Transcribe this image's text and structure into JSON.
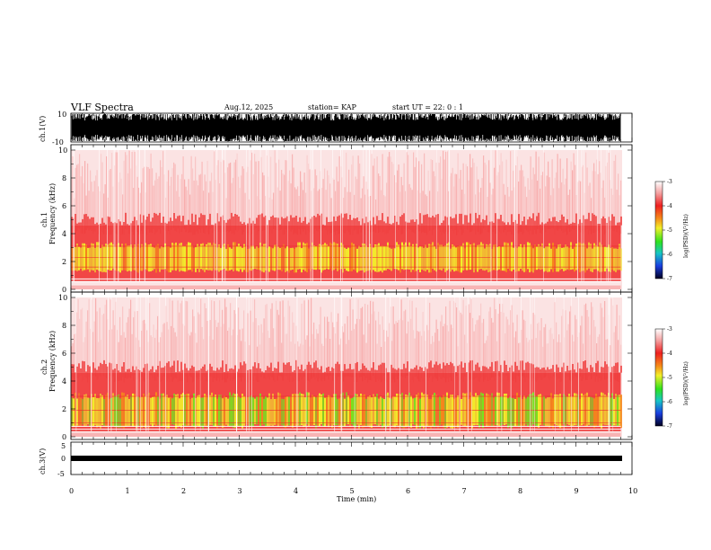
{
  "header": {
    "title": "VLF Spectra",
    "date": "Aug.12, 2025",
    "station": "station= KAP",
    "start": "start  UT  =   22: 0  : 1"
  },
  "chart_data": [
    {
      "type": "line",
      "name": "ch1-waveform",
      "ylabel": "ch.1(V)",
      "ylim": [
        -10,
        10
      ],
      "yticks": [
        "10",
        "-10"
      ],
      "xlim": [
        0,
        9.8
      ],
      "note": "dense oscillating waveform filling most of the range"
    },
    {
      "type": "heatmap",
      "name": "ch1-spectrogram",
      "ylabel": "ch.1\nFrequency (kHz)",
      "ylabel_lines": [
        "ch.1",
        "Frequency  (kHz)"
      ],
      "ylim": [
        0,
        10
      ],
      "yticks": [
        "0",
        "2",
        "4",
        "6",
        "8",
        "10"
      ],
      "xlim": [
        0,
        9.8
      ],
      "bands_khz": {
        "yellow": [
          1.2,
          3.4
        ],
        "orange_red": [
          0.6,
          4.6
        ],
        "pale_above": 4.6
      },
      "colorbar": {
        "label": "log(PSD)(V²/Hz)",
        "ticks": [
          "-3",
          "-4",
          "-5",
          "-6",
          "-7"
        ],
        "range": [
          -7,
          -3
        ]
      }
    },
    {
      "type": "heatmap",
      "name": "ch2-spectrogram",
      "ylabel_lines": [
        "ch.2",
        "Frequency  (kHz)"
      ],
      "ylim": [
        0,
        10
      ],
      "yticks": [
        "0",
        "2",
        "4",
        "6",
        "8",
        "10"
      ],
      "xlim": [
        0,
        9.8
      ],
      "bands_khz": {
        "green": [
          0.6,
          3.2
        ],
        "orange_red": [
          0.4,
          4.6
        ],
        "pale_above": 4.6
      },
      "colorbar": {
        "label": "log(PSD)(V²/Hz)",
        "ticks": [
          "-3",
          "-4",
          "-5",
          "-6",
          "-7"
        ],
        "range": [
          -7,
          -3
        ]
      }
    },
    {
      "type": "line",
      "name": "ch3-waveform",
      "ylabel": "ch.3(V)",
      "ylim": [
        -5,
        5
      ],
      "yticks": [
        "5",
        "0",
        "-5"
      ],
      "xlim": [
        0,
        9.8
      ],
      "note": "thin band around -0.2 V"
    }
  ],
  "xaxis": {
    "label": "Time  (min)",
    "ticks": [
      "0",
      "1",
      "2",
      "3",
      "4",
      "5",
      "6",
      "7",
      "8",
      "9",
      "10"
    ],
    "range": [
      0,
      10
    ]
  },
  "colors": {
    "pale": "#fbe3e3",
    "light_red": "#f7a0a0",
    "red": "#ee2a2a",
    "orange": "#f58a1a",
    "yellow": "#f2ef2a",
    "green": "#79e21e"
  }
}
